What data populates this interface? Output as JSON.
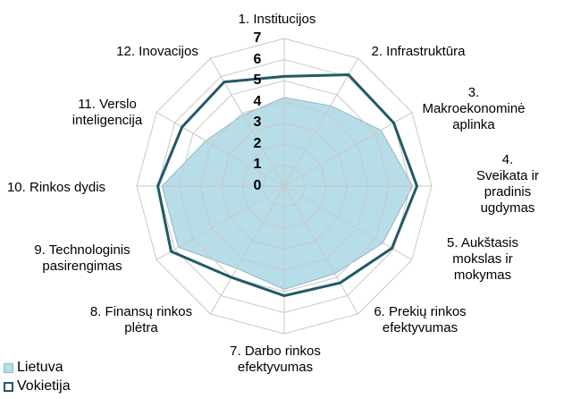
{
  "chart_data": {
    "type": "radar",
    "categories": [
      "1. Institucijos",
      "2. Infrastruktūra",
      "3.\nMakroekonominė\naplinka",
      "4. Sveikata ir\npradinis ugdymas",
      "5. Aukštasis\nmokslas ir\nmokymas",
      "6. Prekių rinkos\nefektyvumas",
      "7. Darbo rinkos\nefektyvumas",
      "8. Finansų rinkos\nplėtra",
      "9. Technologinis\npasirengimas",
      "10. Rinkos dydis",
      "11. Verslo\ninteligencija",
      "12. Inovacijos"
    ],
    "series": [
      {
        "name": "Lietuva",
        "color": "#b7dde8",
        "values": [
          4.2,
          4.4,
          5.3,
          6.1,
          5.4,
          4.8,
          4.9,
          4.5,
          5.8,
          5.8,
          4.3,
          3.9
        ]
      },
      {
        "name": "Vokietija",
        "color": "#215968",
        "values": [
          5.2,
          6.1,
          6.0,
          6.3,
          5.9,
          5.3,
          5.2,
          5.0,
          6.2,
          6.0,
          5.6,
          5.7
        ]
      }
    ],
    "ylim": [
      0,
      7
    ],
    "yticks": [
      0,
      1,
      2,
      3,
      4,
      5,
      6,
      7
    ],
    "grid": true,
    "legend": "bottom-left"
  }
}
